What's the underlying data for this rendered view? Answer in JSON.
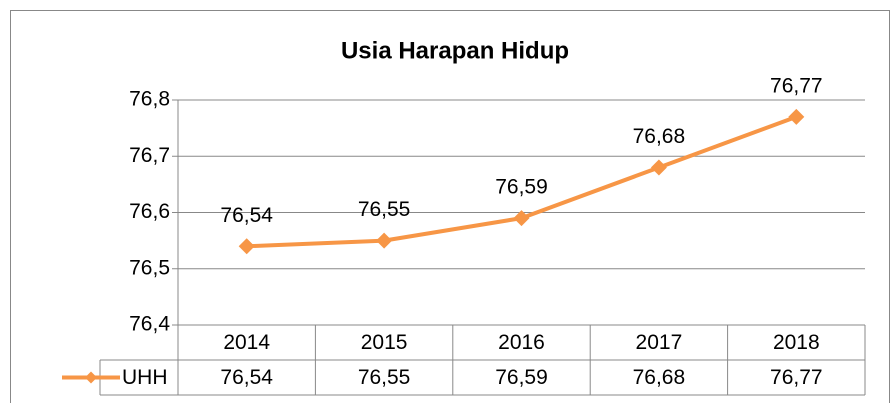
{
  "chart_data": {
    "type": "line",
    "title": "Usia Harapan Hidup",
    "categories": [
      "2014",
      "2015",
      "2016",
      "2017",
      "2018"
    ],
    "series": [
      {
        "name": "UHH",
        "color": "#f79646",
        "values": [
          76.54,
          76.55,
          76.59,
          76.68,
          76.77
        ],
        "value_labels": [
          "76,54",
          "76,55",
          "76,59",
          "76,68",
          "76,77"
        ]
      }
    ],
    "ylim": [
      76.4,
      76.8
    ],
    "yticks": [
      {
        "value": 76.4,
        "label": "76,4"
      },
      {
        "value": 76.5,
        "label": "76,5"
      },
      {
        "value": 76.6,
        "label": "76,6"
      },
      {
        "value": 76.7,
        "label": "76,7"
      },
      {
        "value": 76.8,
        "label": "76,8"
      }
    ],
    "grid": true
  }
}
